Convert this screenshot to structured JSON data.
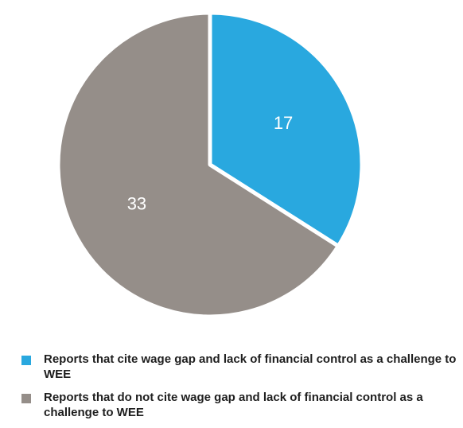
{
  "chart_data": {
    "type": "pie",
    "slices": [
      {
        "label": "Reports that cite wage gap and lack of financial control as a challenge to WEE",
        "value": 17,
        "value_label": "17",
        "color": "#29a8df"
      },
      {
        "label": "Reports that do not cite wage gap and lack of financial control as a challenge to WEE",
        "value": 33,
        "value_label": "33",
        "color": "#958e89"
      }
    ],
    "start_angle": "12 o'clock",
    "direction": "clockwise",
    "legend_position": "bottom-left",
    "title": ""
  }
}
